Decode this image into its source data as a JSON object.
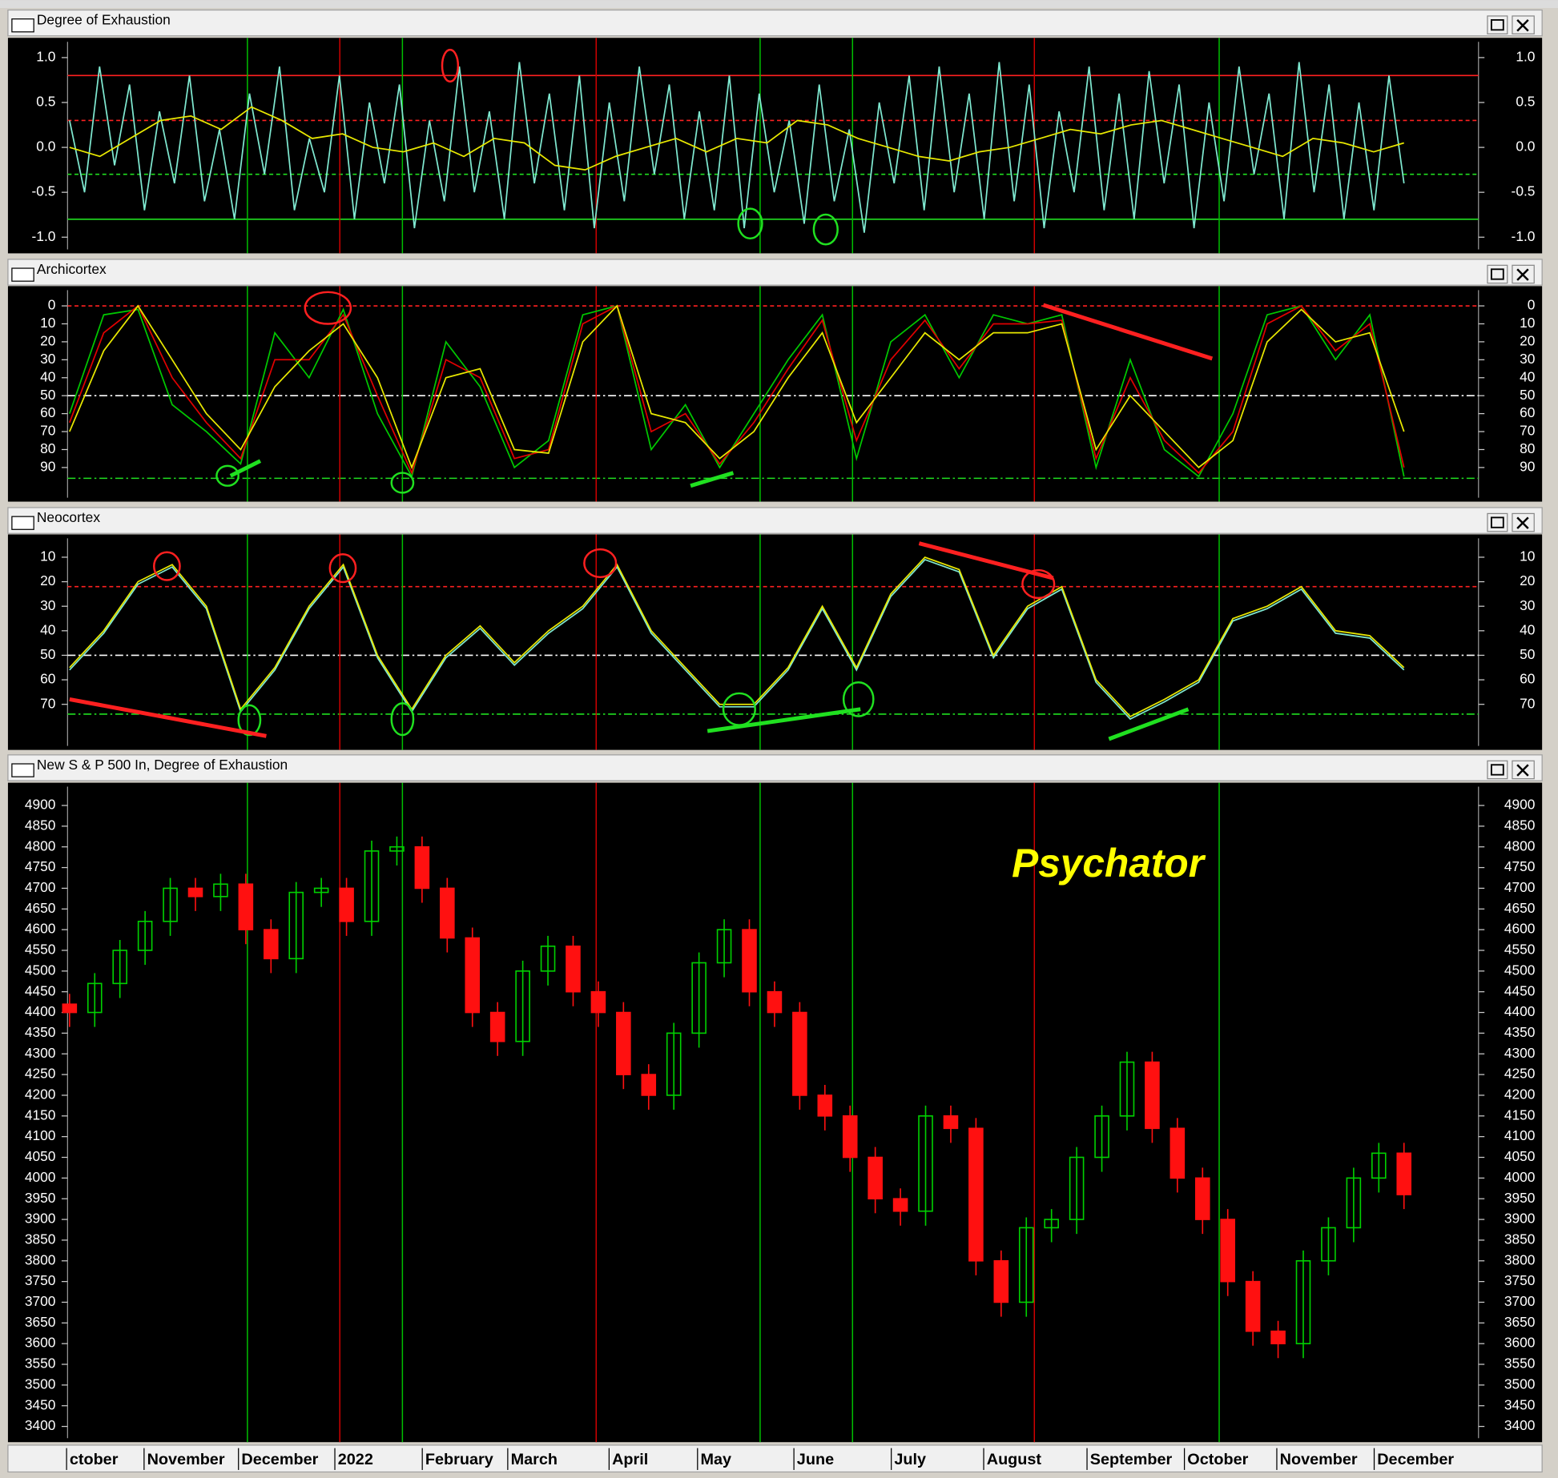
{
  "chart_data": [
    {
      "type": "line",
      "title": "Degree of Exhaustion",
      "ylim": [
        -1.18,
        1.22
      ],
      "yticks": [
        {
          "value": -1.0,
          "label": "-1.0"
        },
        -0.5,
        {
          "value": 0.0,
          "label": "0.0"
        },
        0.5,
        {
          "value": 1.0,
          "label": "1.0"
        }
      ],
      "hlines": [
        {
          "value": 0.8,
          "color": "#ff2020",
          "style": "solid"
        },
        {
          "value": 0.3,
          "color": "#ff2020",
          "style": "dashed"
        },
        {
          "value": -0.3,
          "color": "#20e020",
          "style": "dashed"
        },
        {
          "value": -0.8,
          "color": "#20e020",
          "style": "solid"
        }
      ],
      "series": [
        {
          "color": "#7fe8d0",
          "values": [
            0.3,
            -0.5,
            0.9,
            -0.2,
            0.7,
            -0.7,
            0.4,
            -0.4,
            0.8,
            -0.6,
            0.2,
            -0.8,
            0.6,
            -0.3,
            0.9,
            -0.7,
            0.1,
            -0.5,
            0.8,
            -0.8,
            0.5,
            -0.4,
            0.7,
            -0.9,
            0.3,
            -0.6,
            0.9,
            -0.5,
            0.4,
            -0.8,
            0.95,
            -0.4,
            0.6,
            -0.7,
            0.8,
            -0.9,
            0.5,
            -0.6,
            0.9,
            -0.3,
            0.7,
            -0.8,
            0.4,
            -0.7,
            0.8,
            -0.9,
            0.6,
            -0.5,
            0.3,
            -0.85,
            0.7,
            -0.6,
            0.2,
            -0.95,
            0.5,
            -0.4,
            0.8,
            -0.7,
            0.9,
            -0.5,
            0.6,
            -0.8,
            0.95,
            -0.6,
            0.7,
            -0.9,
            0.4,
            -0.5,
            0.9,
            -0.7,
            0.6,
            -0.8,
            0.85,
            -0.4,
            0.7,
            -0.9,
            0.5,
            -0.6,
            0.9,
            -0.3,
            0.6,
            -0.8,
            0.95,
            -0.5,
            0.7,
            -0.8,
            0.5,
            -0.7,
            0.8,
            -0.4
          ]
        },
        {
          "color": "#e8e800",
          "values": [
            0,
            -0.1,
            0.1,
            0.3,
            0.35,
            0.2,
            0.45,
            0.3,
            0.1,
            0.15,
            0,
            -0.05,
            0.05,
            -0.1,
            0.1,
            0.05,
            -0.2,
            -0.25,
            -0.1,
            0,
            0.1,
            -0.05,
            0.1,
            0.05,
            0.3,
            0.25,
            0.1,
            0,
            -0.1,
            -0.15,
            -0.05,
            0,
            0.1,
            0.2,
            0.15,
            0.25,
            0.3,
            0.2,
            0.1,
            0,
            -0.1,
            0.1,
            0.05,
            -0.05,
            0.05
          ]
        }
      ]
    },
    {
      "type": "line",
      "title": "Archicortex",
      "inverted": true,
      "ylim": [
        -11,
        109
      ],
      "yticks": [
        0,
        10,
        20,
        30,
        40,
        50,
        60,
        70,
        80,
        90
      ],
      "hlines": [
        {
          "value": 0,
          "color": "#ff2020",
          "style": "dashed"
        },
        {
          "value": 50,
          "color": "#ffffff",
          "style": "dashdot"
        },
        {
          "value": 96,
          "color": "#20e020",
          "style": "dashdot"
        }
      ],
      "series": [
        {
          "color": "#00c800",
          "values": [
            60,
            5,
            2,
            55,
            70,
            88,
            15,
            40,
            2,
            60,
            95,
            20,
            45,
            90,
            75,
            5,
            0,
            80,
            55,
            90,
            60,
            30,
            5,
            85,
            20,
            5,
            40,
            5,
            10,
            5,
            90,
            30,
            80,
            95,
            60,
            5,
            0,
            30,
            5,
            95
          ]
        },
        {
          "color": "#e00000",
          "values": [
            65,
            15,
            0,
            40,
            65,
            85,
            30,
            30,
            5,
            50,
            93,
            30,
            40,
            85,
            80,
            10,
            0,
            70,
            60,
            88,
            65,
            35,
            8,
            75,
            30,
            8,
            35,
            10,
            10,
            8,
            85,
            40,
            75,
            93,
            70,
            10,
            0,
            25,
            10,
            90
          ]
        },
        {
          "color": "#e8e800",
          "values": [
            70,
            25,
            0,
            30,
            60,
            80,
            45,
            25,
            10,
            40,
            90,
            40,
            35,
            80,
            82,
            20,
            0,
            60,
            65,
            85,
            70,
            40,
            15,
            65,
            40,
            15,
            30,
            15,
            15,
            10,
            80,
            50,
            70,
            90,
            75,
            20,
            2,
            20,
            15,
            70
          ]
        }
      ]
    },
    {
      "type": "line",
      "title": "Neocortex",
      "inverted": true,
      "ylim": [
        0.7,
        88.6
      ],
      "yticks": [
        10,
        20,
        30,
        40,
        50,
        60,
        70
      ],
      "hlines": [
        {
          "value": 22,
          "color": "#ff2020",
          "style": "dashed"
        },
        {
          "value": 50,
          "color": "#ffffff",
          "style": "dashdot"
        },
        {
          "value": 74,
          "color": "#20e020",
          "style": "dashdot"
        }
      ],
      "series": [
        {
          "color": "#7fe8d0",
          "values": [
            56,
            41,
            21,
            14,
            31,
            73,
            56,
            31,
            14,
            51,
            73,
            51,
            39,
            54,
            41,
            31,
            14,
            41,
            56,
            71,
            71,
            56,
            31,
            56,
            26,
            11,
            16,
            51,
            31,
            23,
            61,
            76,
            69,
            61,
            36,
            31,
            23,
            41,
            43,
            56
          ]
        },
        {
          "color": "#e8e800",
          "values": [
            55,
            40,
            20,
            13,
            30,
            72,
            55,
            30,
            13,
            50,
            72,
            50,
            38,
            53,
            40,
            30,
            13,
            40,
            55,
            70,
            70,
            55,
            30,
            55,
            25,
            10,
            15,
            50,
            30,
            22,
            60,
            75,
            68,
            60,
            35,
            30,
            22,
            40,
            42,
            55
          ]
        }
      ]
    },
    {
      "type": "candlestick",
      "title": "New S & P 500 In, Degree of Exhaustion",
      "ylim": [
        3362,
        4955
      ],
      "yticks": [
        3400,
        3450,
        3500,
        3550,
        3600,
        3650,
        3700,
        3750,
        3800,
        3850,
        3900,
        3950,
        4000,
        4050,
        4100,
        4150,
        4200,
        4250,
        4300,
        4350,
        4400,
        4450,
        4500,
        4550,
        4600,
        4650,
        4700,
        4750,
        4800,
        4850,
        4900
      ],
      "up_color": "#00d000",
      "down_color": "#ff1010",
      "open": [
        4420,
        4400,
        4470,
        4550,
        4620,
        4700,
        4680,
        4710,
        4600,
        4530,
        4690,
        4700,
        4620,
        4790,
        4800,
        4700,
        4580,
        4400,
        4330,
        4500,
        4560,
        4450,
        4400,
        4250,
        4200,
        4350,
        4520,
        4600,
        4450,
        4400,
        4200,
        4150,
        4050,
        3950,
        3920,
        4150,
        4120,
        3800,
        3700,
        3880,
        3900,
        4050,
        4150,
        4280,
        4120,
        4000,
        3900,
        3750,
        3630,
        3600,
        3800,
        3880,
        4000,
        4060
      ],
      "high": [
        4445,
        4495,
        4575,
        4645,
        4725,
        4725,
        4735,
        4735,
        4625,
        4715,
        4725,
        4725,
        4815,
        4825,
        4825,
        4725,
        4605,
        4425,
        4525,
        4585,
        4585,
        4475,
        4425,
        4275,
        4375,
        4545,
        4625,
        4625,
        4475,
        4425,
        4225,
        4175,
        4075,
        3975,
        4175,
        4175,
        4145,
        3825,
        3905,
        3925,
        4075,
        4175,
        4305,
        4305,
        4145,
        4025,
        3925,
        3775,
        3655,
        3825,
        3905,
        4025,
        4085,
        4085
      ],
      "low": [
        4365,
        4365,
        4435,
        4515,
        4585,
        4645,
        4645,
        4565,
        4495,
        4495,
        4655,
        4585,
        4585,
        4755,
        4665,
        4545,
        4365,
        4295,
        4295,
        4465,
        4415,
        4365,
        4215,
        4165,
        4165,
        4315,
        4485,
        4415,
        4365,
        4165,
        4115,
        4015,
        3915,
        3885,
        3885,
        4085,
        3765,
        3665,
        3665,
        3845,
        3865,
        4015,
        4115,
        4085,
        3965,
        3865,
        3715,
        3595,
        3565,
        3565,
        3765,
        3845,
        3965,
        3925
      ],
      "close": [
        4400,
        4470,
        4550,
        4620,
        4700,
        4680,
        4710,
        4600,
        4530,
        4690,
        4700,
        4620,
        4790,
        4800,
        4700,
        4580,
        4400,
        4330,
        4500,
        4560,
        4450,
        4400,
        4250,
        4200,
        4350,
        4520,
        4600,
        4450,
        4400,
        4200,
        4150,
        4050,
        3950,
        3920,
        4150,
        4120,
        3800,
        3700,
        3880,
        3900,
        4050,
        4150,
        4280,
        4120,
        4000,
        3900,
        3750,
        3630,
        3600,
        3800,
        3880,
        4000,
        4060,
        3960
      ],
      "annotations": [
        "Psychator"
      ],
      "x_labels": [
        "ctober",
        "November",
        "December",
        "2022",
        "February",
        "March",
        "April",
        "May",
        "June",
        "July",
        "August",
        "September",
        "October",
        "November",
        "December"
      ]
    }
  ]
}
